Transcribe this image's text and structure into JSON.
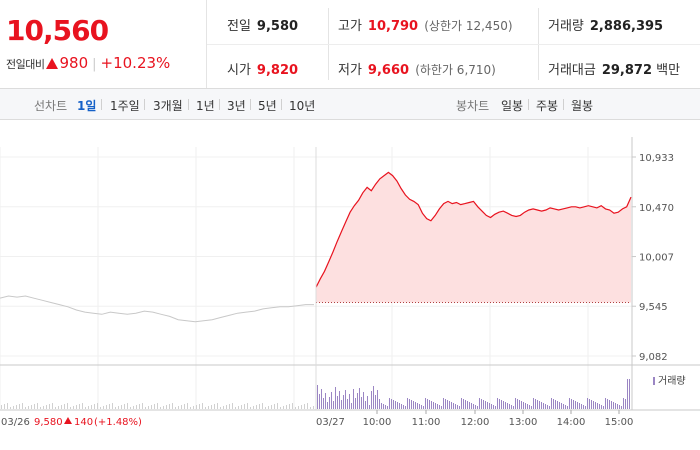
{
  "price": {
    "current": "10,560",
    "change_label": "전일대비",
    "change_value": "980",
    "change_pct": "+10.23%"
  },
  "stats": {
    "prev_close_label": "전일",
    "prev_close": "9,580",
    "high_label": "고가",
    "high": "10,790",
    "upper_limit": "(상한가 12,450)",
    "volume_label": "거래량",
    "volume": "2,886,395",
    "open_label": "시가",
    "open": "9,820",
    "low_label": "저가",
    "low": "9,660",
    "lower_limit": "(하한가 6,710)",
    "trade_value_label": "거래대금",
    "trade_value": "29,872",
    "trade_value_unit": "백만"
  },
  "tabs": {
    "line_title": "선차트",
    "line": [
      "1일",
      "1주일",
      "3개월",
      "1년",
      "3년",
      "5년",
      "10년"
    ],
    "active": "1일",
    "candle_title": "봉차트",
    "candle": [
      "일봉",
      "주봉",
      "월봉"
    ]
  },
  "colors": {
    "up": "#e8131f",
    "down": "#1561c8",
    "prev_day": "#c8c8c8",
    "volume": "#9b86c4",
    "fill": "#fde0e0"
  },
  "chart_data": {
    "type": "line",
    "ylim": [
      9082,
      10933
    ],
    "y_ticks": [
      "10,933",
      "10,470",
      "10,007",
      "9,545",
      "9,082"
    ],
    "y_tick_values": [
      10933,
      10470,
      10007,
      9545,
      9082
    ],
    "volume_label": "거래량",
    "prev_day": {
      "date": "03/26",
      "close": "9,580",
      "change": "140",
      "change_pct": "(+1.48%)",
      "values": [
        9620,
        9640,
        9630,
        9640,
        9620,
        9600,
        9580,
        9560,
        9540,
        9510,
        9490,
        9480,
        9470,
        9490,
        9480,
        9470,
        9480,
        9500,
        9490,
        9470,
        9450,
        9420,
        9410,
        9400,
        9410,
        9420,
        9440,
        9460,
        9480,
        9490,
        9500,
        9520,
        9530,
        9540,
        9540,
        9550,
        9560,
        9560
      ]
    },
    "today": {
      "date": "03/27",
      "baseline": 9580,
      "values": [
        9720,
        9800,
        9870,
        9960,
        10050,
        10150,
        10240,
        10330,
        10420,
        10480,
        10530,
        10600,
        10650,
        10620,
        10680,
        10730,
        10760,
        10790,
        10760,
        10710,
        10640,
        10580,
        10540,
        10520,
        10490,
        10410,
        10360,
        10340,
        10390,
        10450,
        10500,
        10520,
        10500,
        10510,
        10490,
        10500,
        10510,
        10520,
        10470,
        10430,
        10390,
        10370,
        10400,
        10420,
        10430,
        10410,
        10390,
        10380,
        10390,
        10420,
        10440,
        10450,
        10440,
        10430,
        10440,
        10460,
        10450,
        10440,
        10450,
        10460,
        10470,
        10470,
        10460,
        10470,
        10480,
        10470,
        10460,
        10480,
        10450,
        10440,
        10410,
        10420,
        10450,
        10470,
        10560
      ]
    },
    "x_ticks": [
      "10:00",
      "11:00",
      "12:00",
      "13:00",
      "14:00",
      "15:00"
    ]
  }
}
